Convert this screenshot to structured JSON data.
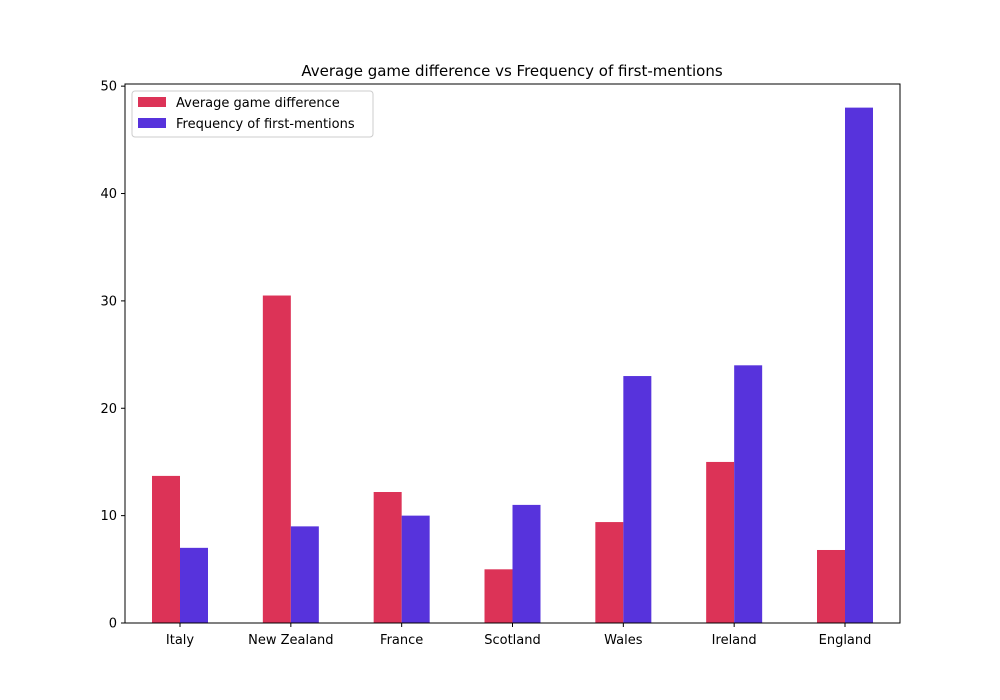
{
  "chart_data": {
    "type": "bar",
    "title": "Average game difference vs Frequency of first-mentions",
    "xlabel": "",
    "ylabel": "",
    "categories": [
      "Italy",
      "New Zealand",
      "France",
      "Scotland",
      "Wales",
      "Ireland",
      "England"
    ],
    "series": [
      {
        "name": "Average game difference",
        "color": "#dc3357",
        "values": [
          13.7,
          30.5,
          12.2,
          5.0,
          9.4,
          15.0,
          6.8
        ]
      },
      {
        "name": "Frequency of first-mentions",
        "color": "#5733dc",
        "values": [
          7,
          9,
          10,
          11,
          23,
          24,
          48
        ]
      }
    ],
    "ylim": [
      0,
      50.2
    ],
    "yticks": [
      0,
      10,
      20,
      30,
      40,
      50
    ],
    "grid": false,
    "legend_position": "top-left"
  }
}
